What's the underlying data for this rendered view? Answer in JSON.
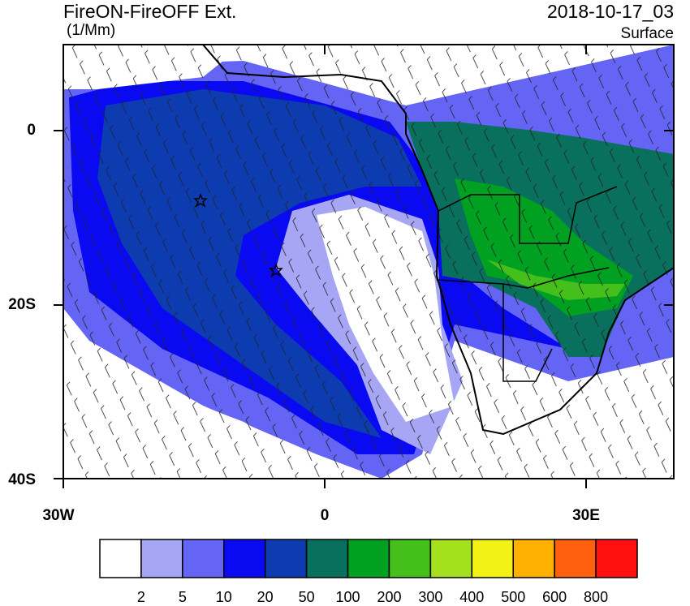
{
  "header": {
    "title": "FireON-FireOFF Ext.",
    "units": "(1/Mm)",
    "date": "2018-10-17_03",
    "level": "Surface"
  },
  "axes": {
    "y_labels": [
      "0",
      "20S",
      "40S"
    ],
    "x_labels": [
      "30W",
      "0",
      "30E"
    ]
  },
  "colorbar": {
    "levels": [
      2,
      5,
      10,
      20,
      50,
      100,
      200,
      300,
      400,
      500,
      600,
      800
    ],
    "colors": [
      "#ffffff",
      "#a6a6f5",
      "#6464f5",
      "#0a0af2",
      "#0c3cb0",
      "#08705c",
      "#00a020",
      "#44bf1c",
      "#a4e01e",
      "#f2f214",
      "#ffb000",
      "#ff6010",
      "#ff1010"
    ]
  }
}
